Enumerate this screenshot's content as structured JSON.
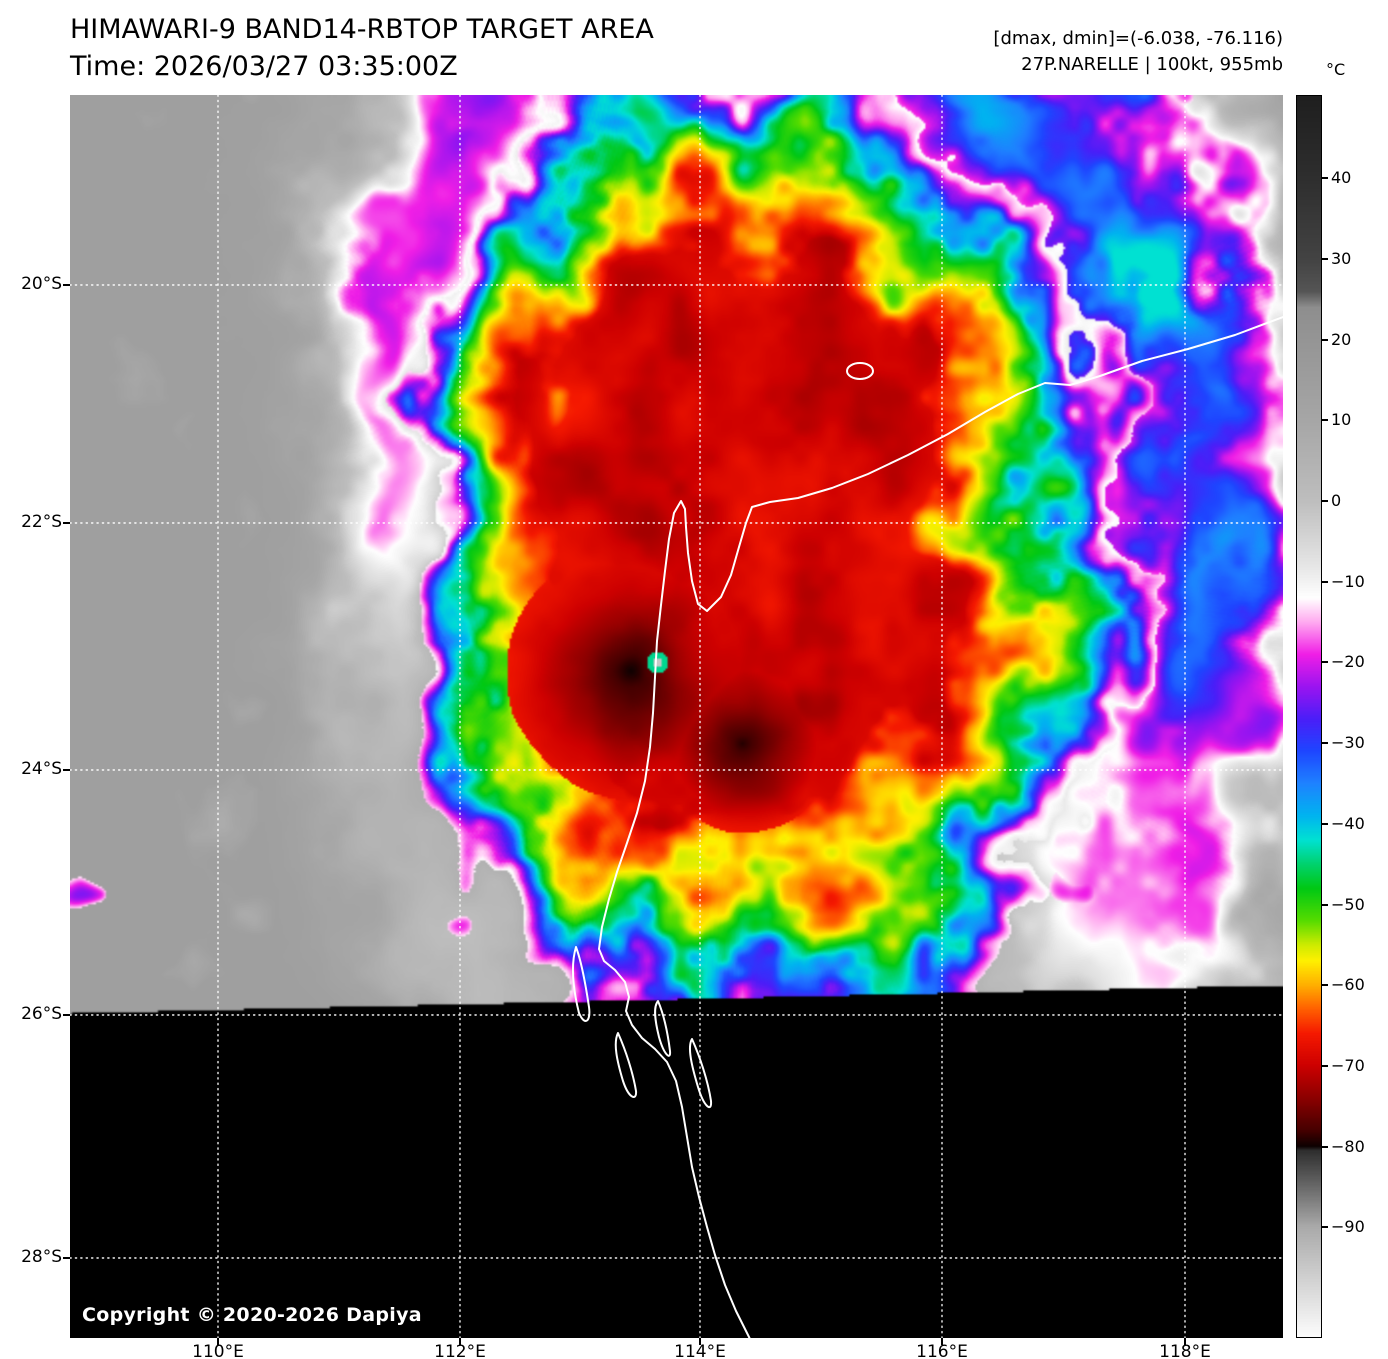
{
  "header": {
    "title": "HIMAWARI-9 BAND14-RBTOP TARGET AREA",
    "time": "Time: 2026/03/27 03:35:00Z",
    "range_info": "[dmax, dmin]=(-6.038, -76.116)",
    "storm_info": "27P.NARELLE | 100kt, 955mb"
  },
  "colorbar": {
    "unit": "°C",
    "tick_labels": [
      "40",
      "30",
      "20",
      "10",
      "0",
      "−10",
      "−20",
      "−30",
      "−40",
      "−50",
      "−60",
      "−70",
      "−80",
      "−90"
    ],
    "tick_values": [
      40,
      30,
      20,
      10,
      0,
      -10,
      -20,
      -30,
      -40,
      -50,
      -60,
      -70,
      -80,
      -90
    ],
    "palette_stops": [
      [
        50,
        "#1f1f1f"
      ],
      [
        40,
        "#2e2e2e"
      ],
      [
        30,
        "#434343"
      ],
      [
        26,
        "#555555"
      ],
      [
        24,
        "#8e8e8e"
      ],
      [
        10,
        "#a6a6a6"
      ],
      [
        0,
        "#bebebe"
      ],
      [
        -8,
        "#e6e6e6"
      ],
      [
        -12,
        "#ffffff"
      ],
      [
        -15,
        "#ffaaf0"
      ],
      [
        -19,
        "#f01ee6"
      ],
      [
        -23,
        "#9b14f0"
      ],
      [
        -27,
        "#4b1ef8"
      ],
      [
        -31,
        "#1e46ff"
      ],
      [
        -35,
        "#1e82ff"
      ],
      [
        -39,
        "#00b4f0"
      ],
      [
        -42,
        "#00e1d2"
      ],
      [
        -45,
        "#00d26e"
      ],
      [
        -48,
        "#00c814"
      ],
      [
        -52,
        "#55dc00"
      ],
      [
        -55,
        "#cdeb00"
      ],
      [
        -57,
        "#fff000"
      ],
      [
        -60,
        "#ffaf00"
      ],
      [
        -63,
        "#ff5f00"
      ],
      [
        -66,
        "#f51900"
      ],
      [
        -70,
        "#cd0000"
      ],
      [
        -74,
        "#8c0000"
      ],
      [
        -78,
        "#460000"
      ],
      [
        -80,
        "#0d0101"
      ],
      [
        -80.5,
        "#2e2e2e"
      ],
      [
        -90,
        "#aaaaaa"
      ],
      [
        -104,
        "#ffffff"
      ]
    ]
  },
  "axes": {
    "lat_labels": [
      "20°S",
      "22°S",
      "24°S",
      "26°S",
      "28°S"
    ],
    "lat_values": [
      -20,
      -22,
      -24,
      -26,
      -28
    ],
    "lon_labels": [
      "110°E",
      "112°E",
      "114°E",
      "116°E",
      "118°E"
    ],
    "lon_values": [
      110,
      112,
      114,
      116,
      118
    ]
  },
  "map": {
    "copyright": "Copyright © 2020-2026 Dapiya"
  },
  "colors": {
    "grid": "#ffffff",
    "coast": "#ffffff",
    "page_background": "#ffffff",
    "text": "#000000",
    "scan_edge": "#000000"
  }
}
